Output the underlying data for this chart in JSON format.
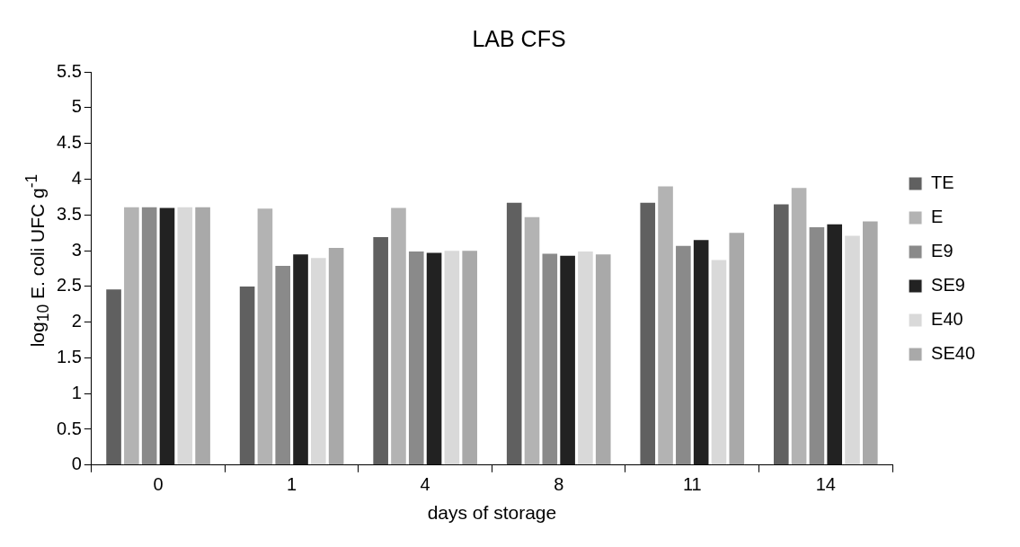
{
  "chart_data": {
    "type": "bar",
    "title": "LAB CFS",
    "xlabel": "days of storage",
    "ylabel": "log$_{10}$ E. coli UFC g$^{-1}$",
    "categories": [
      "0",
      "1",
      "4",
      "8",
      "11",
      "14"
    ],
    "series": [
      {
        "name": "TE",
        "color": "#606060",
        "values": [
          2.47,
          2.51,
          3.2,
          3.68,
          3.68,
          3.66
        ]
      },
      {
        "name": "E",
        "color": "#b3b3b3",
        "values": [
          3.62,
          3.6,
          3.61,
          3.48,
          3.91,
          3.89
        ]
      },
      {
        "name": "E9",
        "color": "#8a8a8a",
        "values": [
          3.62,
          2.8,
          3.0,
          2.97,
          3.08,
          3.34
        ]
      },
      {
        "name": "SE9",
        "color": "#222222",
        "values": [
          3.61,
          2.96,
          2.98,
          2.94,
          3.16,
          3.38
        ]
      },
      {
        "name": "E40",
        "color": "#d9d9d9",
        "values": [
          3.62,
          2.91,
          3.01,
          3.0,
          2.88,
          3.22
        ]
      },
      {
        "name": "SE40",
        "color": "#a9a9a9",
        "values": [
          3.62,
          3.05,
          3.01,
          2.96,
          3.26,
          3.42
        ]
      }
    ],
    "ylim": [
      0,
      5.5
    ],
    "yticks": [
      0,
      0.5,
      1,
      1.5,
      2,
      2.5,
      3,
      3.5,
      4,
      4.5,
      5,
      5.5
    ],
    "grid": false,
    "legend": "right"
  }
}
